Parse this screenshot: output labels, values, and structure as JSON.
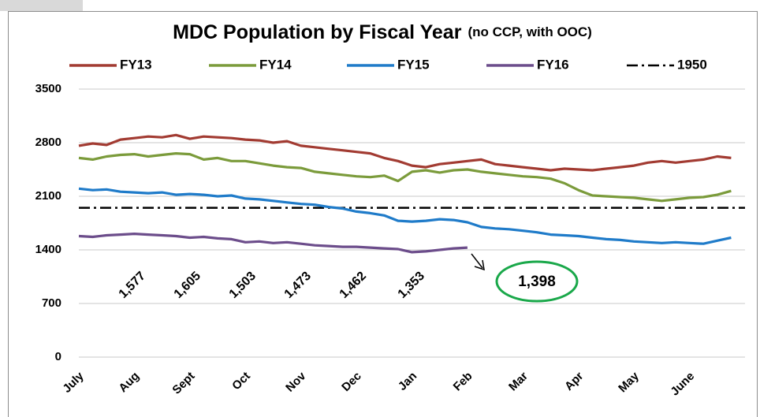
{
  "chart_data": {
    "type": "line",
    "title": "MDC Population by Fiscal Year",
    "subtitle": "(no CCP, with OOC)",
    "categories": [
      "July",
      null,
      null,
      null,
      "Aug",
      null,
      null,
      null,
      "Sept",
      null,
      null,
      null,
      "Oct",
      null,
      null,
      null,
      "Nov",
      null,
      null,
      null,
      "Dec",
      null,
      null,
      null,
      "Jan",
      null,
      null,
      null,
      "Feb",
      null,
      null,
      null,
      "Mar",
      null,
      null,
      null,
      "Apr",
      null,
      null,
      null,
      "May",
      null,
      null,
      null,
      "June",
      null,
      null,
      null
    ],
    "series": [
      {
        "name": "FY13",
        "color": "#a23b32",
        "values": [
          2760,
          2790,
          2770,
          2840,
          2860,
          2880,
          2870,
          2900,
          2850,
          2880,
          2870,
          2860,
          2840,
          2830,
          2800,
          2820,
          2760,
          2740,
          2720,
          2700,
          2680,
          2660,
          2600,
          2560,
          2500,
          2480,
          2520,
          2540,
          2560,
          2580,
          2520,
          2500,
          2480,
          2460,
          2440,
          2460,
          2450,
          2440,
          2460,
          2480,
          2500,
          2540,
          2560,
          2540,
          2560,
          2580,
          2620,
          2600
        ]
      },
      {
        "name": "FY14",
        "color": "#7b9b3b",
        "values": [
          2600,
          2580,
          2620,
          2640,
          2650,
          2620,
          2640,
          2660,
          2650,
          2580,
          2600,
          2560,
          2560,
          2530,
          2500,
          2480,
          2470,
          2420,
          2400,
          2380,
          2360,
          2350,
          2370,
          2300,
          2420,
          2440,
          2410,
          2440,
          2450,
          2420,
          2400,
          2380,
          2360,
          2350,
          2330,
          2270,
          2180,
          2110,
          2100,
          2090,
          2080,
          2060,
          2040,
          2060,
          2080,
          2090,
          2120,
          2170
        ]
      },
      {
        "name": "FY15",
        "color": "#1f7bc9",
        "values": [
          2200,
          2180,
          2190,
          2160,
          2150,
          2140,
          2150,
          2120,
          2130,
          2120,
          2100,
          2110,
          2070,
          2060,
          2040,
          2020,
          2000,
          1990,
          1960,
          1940,
          1900,
          1880,
          1850,
          1780,
          1770,
          1780,
          1800,
          1790,
          1760,
          1700,
          1680,
          1670,
          1650,
          1630,
          1600,
          1590,
          1580,
          1560,
          1540,
          1530,
          1510,
          1500,
          1490,
          1500,
          1490,
          1480,
          1520,
          1560
        ]
      },
      {
        "name": "FY16",
        "color": "#6c4d8b",
        "values": [
          1580,
          1570,
          1590,
          1600,
          1610,
          1600,
          1590,
          1580,
          1560,
          1570,
          1550,
          1540,
          1500,
          1510,
          1490,
          1500,
          1480,
          1460,
          1450,
          1440,
          1440,
          1430,
          1420,
          1410,
          1370,
          1380,
          1400,
          1420,
          1430,
          null,
          null,
          null,
          null,
          null,
          null,
          null,
          null,
          null,
          null,
          null,
          null,
          null,
          null,
          null,
          null,
          null,
          null,
          null
        ]
      }
    ],
    "reference_lines": [
      {
        "name": "1950",
        "value": 1950,
        "color": "#000000"
      }
    ],
    "annotations": [
      {
        "label": "1,577",
        "value": 1577
      },
      {
        "label": "1,605",
        "value": 1605
      },
      {
        "label": "1,503",
        "value": 1503
      },
      {
        "label": "1,473",
        "value": 1473
      },
      {
        "label": "1,462",
        "value": 1462
      },
      {
        "label": "1,353",
        "value": 1353
      }
    ],
    "callout": {
      "label": "1,398",
      "value": 1398,
      "color": "#1aa84a"
    },
    "ylim": [
      0,
      3500
    ],
    "yticks": [
      0,
      700,
      1400,
      2100,
      2800,
      3500
    ],
    "grid": true
  }
}
